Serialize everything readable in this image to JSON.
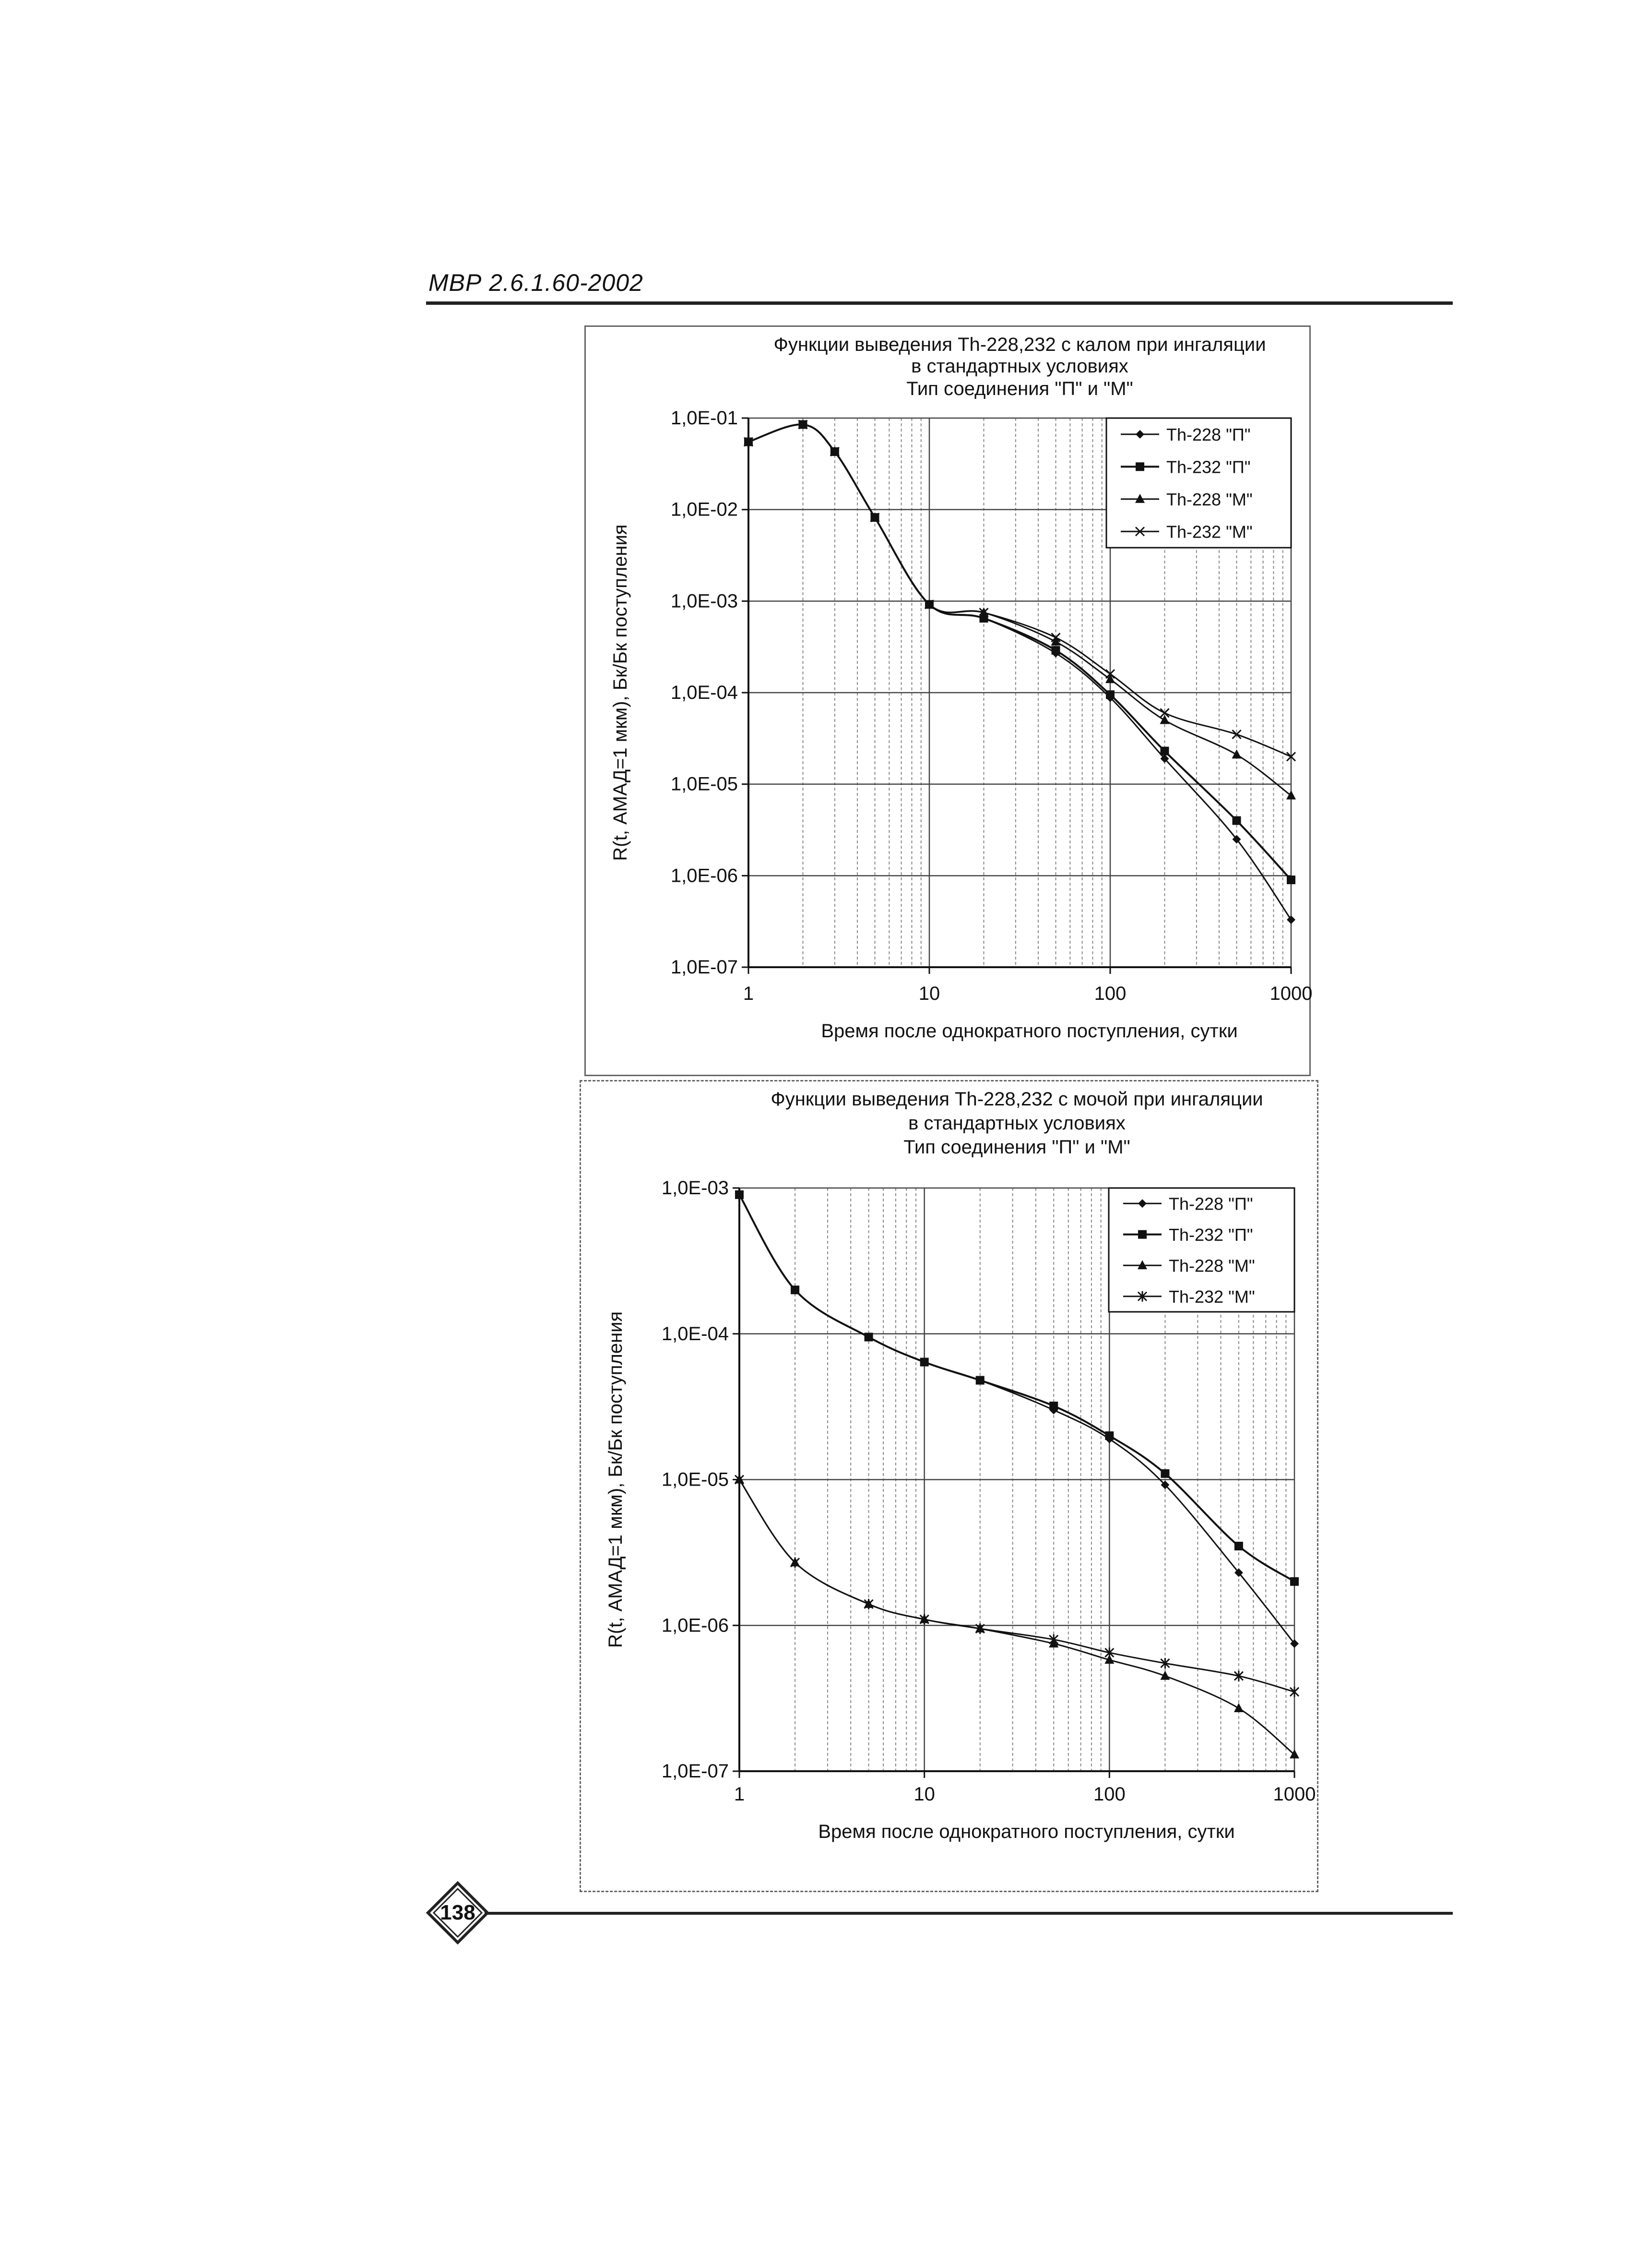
{
  "header": {
    "doc_code": "МВР 2.6.1.60-2002"
  },
  "footer": {
    "page_number": "138"
  },
  "chart_data": [
    {
      "type": "line",
      "title": [
        "Функции выведения Th-228,232 с калом при ингаляции",
        "в стандартных условиях",
        "Тип соединения \"П\" и \"М\""
      ],
      "xlabel": "Время после однократного поступления, сутки",
      "ylabel": "R(t, АМАД=1 мкм), Бк/Бк поступления",
      "x_scale": "log",
      "y_scale": "log",
      "xlim": [
        1,
        1000
      ],
      "ylim": [
        1e-07,
        0.1
      ],
      "x_ticks": [
        1,
        10,
        100,
        1000
      ],
      "x_tick_labels": [
        "1",
        "10",
        "100",
        "1000"
      ],
      "y_ticks": [
        1e-07,
        1e-06,
        1e-05,
        0.0001,
        0.001,
        0.01,
        0.1
      ],
      "y_tick_labels": [
        "1,0E-07",
        "1,0E-06",
        "1,0E-05",
        "1,0E-04",
        "1,0E-03",
        "1,0E-02",
        "1,0E-01"
      ],
      "grid": true,
      "legend_position": "top-right",
      "x": [
        1,
        2,
        3,
        5,
        10,
        20,
        50,
        100,
        200,
        500,
        1000
      ],
      "series": [
        {
          "name": "Th-228 \"П\"",
          "marker": "diamond",
          "values": [
            0.055,
            0.085,
            0.043,
            0.0082,
            0.00092,
            0.00065,
            0.00027,
            8.8e-05,
            1.9e-05,
            2.5e-06,
            3.3e-07
          ]
        },
        {
          "name": "Th-232 \"П\"",
          "marker": "square",
          "values": [
            0.055,
            0.085,
            0.043,
            0.0082,
            0.00092,
            0.00065,
            0.00029,
            9.5e-05,
            2.3e-05,
            4e-06,
            9e-07
          ]
        },
        {
          "name": "Th-228 \"М\"",
          "marker": "triangle",
          "values": [
            0.055,
            0.085,
            0.043,
            0.0082,
            0.00092,
            0.00075,
            0.00036,
            0.00014,
            5e-05,
            2.1e-05,
            7.5e-06
          ]
        },
        {
          "name": "Th-232 \"М\"",
          "marker": "x",
          "values": [
            0.055,
            0.085,
            0.043,
            0.0082,
            0.00092,
            0.00075,
            0.0004,
            0.00016,
            6e-05,
            3.5e-05,
            2e-05
          ]
        }
      ]
    },
    {
      "type": "line",
      "title": [
        "Функции выведения Th-228,232 с мочой при ингаляции",
        "в стандартных условиях",
        "Тип соединения \"П\" и \"М\""
      ],
      "xlabel": "Время после однократного поступления, сутки",
      "ylabel": "R(t, АМАД=1 мкм), Бк/Бк поступления",
      "x_scale": "log",
      "y_scale": "log",
      "xlim": [
        1,
        1000
      ],
      "ylim": [
        1e-07,
        0.001
      ],
      "x_ticks": [
        1,
        10,
        100,
        1000
      ],
      "x_tick_labels": [
        "1",
        "10",
        "100",
        "1000"
      ],
      "y_ticks": [
        1e-07,
        1e-06,
        1e-05,
        0.0001,
        0.001
      ],
      "y_tick_labels": [
        "1,0E-07",
        "1,0E-06",
        "1,0E-05",
        "1,0E-04",
        "1,0E-03"
      ],
      "grid": true,
      "legend_position": "top-right",
      "x": [
        1,
        2,
        5,
        10,
        20,
        50,
        100,
        200,
        500,
        1000
      ],
      "series": [
        {
          "name": "Th-228 \"П\"",
          "marker": "diamond",
          "values": [
            0.0009,
            0.0002,
            9.5e-05,
            6.4e-05,
            4.8e-05,
            3e-05,
            1.9e-05,
            9.2e-06,
            2.3e-06,
            7.5e-07
          ]
        },
        {
          "name": "Th-232 \"П\"",
          "marker": "square",
          "values": [
            0.0009,
            0.0002,
            9.5e-05,
            6.4e-05,
            4.8e-05,
            3.2e-05,
            2e-05,
            1.1e-05,
            3.5e-06,
            2e-06
          ]
        },
        {
          "name": "Th-228 \"М\"",
          "marker": "triangle",
          "values": [
            1e-05,
            2.7e-06,
            1.4e-06,
            1.1e-06,
            9.5e-07,
            7.5e-07,
            5.8e-07,
            4.5e-07,
            2.7e-07,
            1.3e-07
          ]
        },
        {
          "name": "Th-232 \"М\"",
          "marker": "star",
          "values": [
            1e-05,
            2.7e-06,
            1.4e-06,
            1.1e-06,
            9.5e-07,
            8e-07,
            6.5e-07,
            5.5e-07,
            4.5e-07,
            3.5e-07
          ]
        }
      ]
    }
  ]
}
